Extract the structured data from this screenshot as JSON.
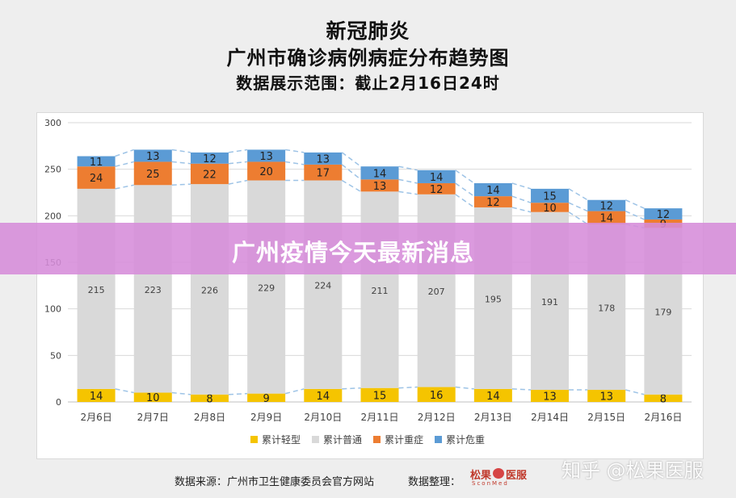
{
  "title_lines": [
    "新冠肺炎",
    "广州市确诊病例病症分布趋势图",
    "数据展示范围：截止2月16日24时"
  ],
  "overlay_text": "广州疫情今天最新消息",
  "footer": {
    "source": "数据来源：广州市卫生健康委员会官方网站",
    "organizer_label": "数据整理：",
    "logo_cn_left": "松果",
    "logo_cn_right": "医服",
    "logo_en": "SconMed"
  },
  "watermark": "知乎 @松果医服",
  "colors": {
    "mild": "#f5c400",
    "normal": "#d9d9d9",
    "severe": "#ed7d31",
    "critical": "#5b9bd5"
  },
  "chart_data": {
    "type": "bar",
    "stacked": true,
    "categories": [
      "2月6日",
      "2月7日",
      "2月8日",
      "2月9日",
      "2月10日",
      "2月11日",
      "2月12日",
      "2月13日",
      "2月14日",
      "2月15日",
      "2月16日"
    ],
    "series": [
      {
        "name": "累计轻型",
        "values": [
          14,
          10,
          8,
          9,
          14,
          15,
          16,
          14,
          13,
          13,
          8
        ]
      },
      {
        "name": "累计普通",
        "values": [
          215,
          223,
          226,
          229,
          224,
          211,
          207,
          195,
          191,
          178,
          179
        ]
      },
      {
        "name": "累计重症",
        "values": [
          24,
          25,
          22,
          20,
          17,
          13,
          12,
          12,
          10,
          14,
          9
        ]
      },
      {
        "name": "累计危重",
        "values": [
          11,
          13,
          12,
          13,
          13,
          14,
          14,
          14,
          15,
          12,
          12
        ]
      }
    ],
    "ylim": [
      0,
      300
    ],
    "yticks": [
      0,
      50,
      100,
      150,
      200,
      250,
      300
    ],
    "grid": true,
    "legend_position": "bottom",
    "connector_lines": "dashed"
  }
}
